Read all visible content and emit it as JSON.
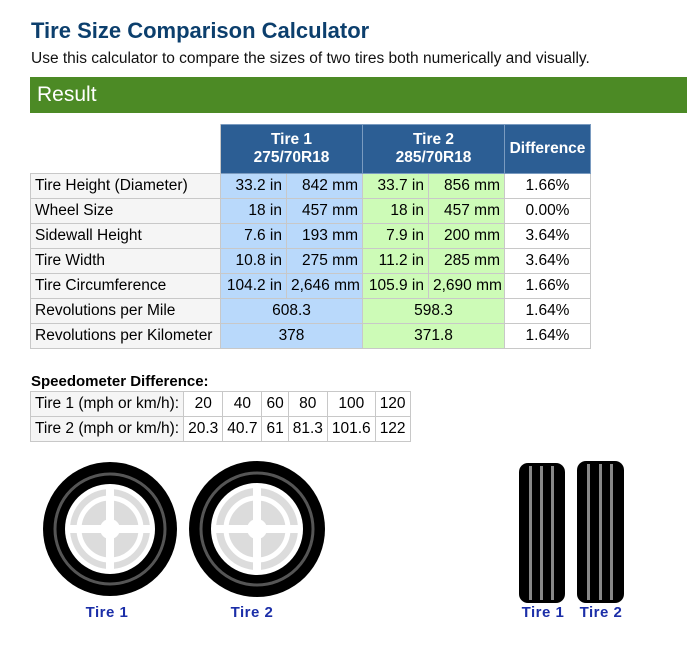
{
  "header": {
    "title": "Tire Size Comparison Calculator",
    "subtitle": "Use this calculator to compare the sizes of two tires both numerically and visually."
  },
  "result": {
    "heading": "Result",
    "columns": {
      "tire1_title": "Tire 1",
      "tire1_size": "275/70R18",
      "tire2_title": "Tire 2",
      "tire2_size": "285/70R18",
      "difference": "Difference"
    },
    "rows": [
      {
        "label": "Tire Height (Diameter)",
        "t1_in": "33.2 in",
        "t1_mm": "842 mm",
        "t2_in": "33.7 in",
        "t2_mm": "856 mm",
        "diff": "1.66%"
      },
      {
        "label": "Wheel Size",
        "t1_in": "18 in",
        "t1_mm": "457 mm",
        "t2_in": "18 in",
        "t2_mm": "457 mm",
        "diff": "0.00%"
      },
      {
        "label": "Sidewall Height",
        "t1_in": "7.6 in",
        "t1_mm": "193 mm",
        "t2_in": "7.9 in",
        "t2_mm": "200 mm",
        "diff": "3.64%"
      },
      {
        "label": "Tire Width",
        "t1_in": "10.8 in",
        "t1_mm": "275 mm",
        "t2_in": "11.2 in",
        "t2_mm": "285 mm",
        "diff": "3.64%"
      },
      {
        "label": "Tire Circumference",
        "t1_in": "104.2 in",
        "t1_mm": "2,646 mm",
        "t2_in": "105.9 in",
        "t2_mm": "2,690 mm",
        "diff": "1.66%"
      }
    ],
    "single_rows": [
      {
        "label": "Revolutions per Mile",
        "t1": "608.3",
        "t2": "598.3",
        "diff": "1.64%"
      },
      {
        "label": "Revolutions per Kilometer",
        "t1": "378",
        "t2": "371.8",
        "diff": "1.64%"
      }
    ]
  },
  "speedometer": {
    "title": "Speedometer Difference:",
    "row1_label": "Tire 1 (mph or km/h):",
    "row1": [
      "20",
      "40",
      "60",
      "80",
      "100",
      "120"
    ],
    "row2_label": "Tire 2 (mph or km/h):",
    "row2": [
      "20.3",
      "40.7",
      "61",
      "81.3",
      "101.6",
      "122"
    ]
  },
  "visuals": {
    "side_view_label_1": "Tire 1",
    "side_view_label_2": "Tire 2",
    "front_view_label_1": "Tire 1",
    "front_view_label_2": "Tire 2"
  },
  "colors": {
    "title": "#0c3f6d",
    "result_bar": "#4c8a25",
    "table_header": "#2c5e94",
    "tire1_cell": "#b9d9fb",
    "tire2_cell": "#cdfbb7",
    "caption": "#1b2ea8"
  }
}
